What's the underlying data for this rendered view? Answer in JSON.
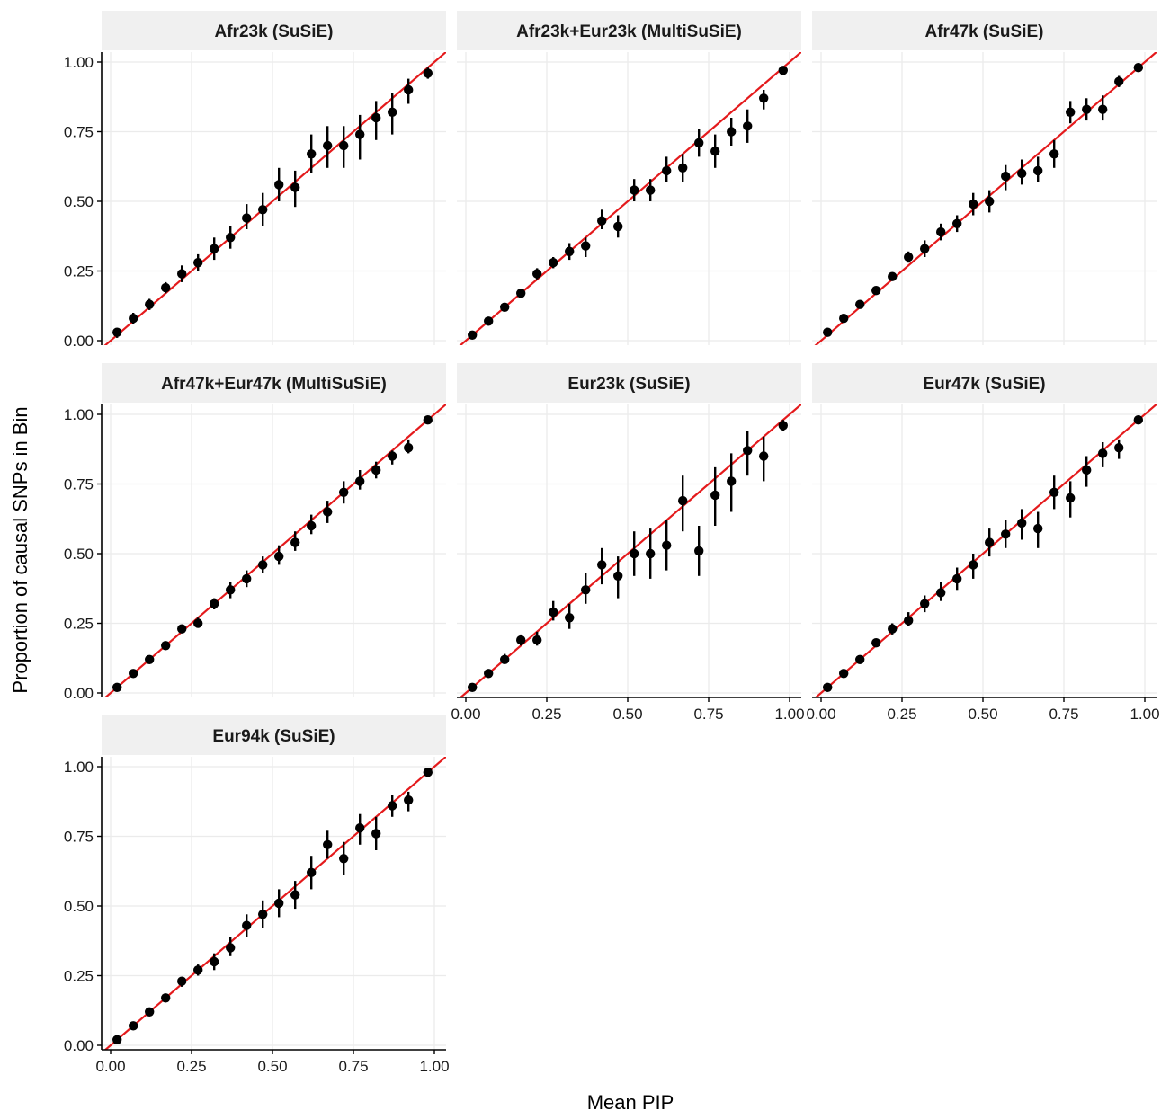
{
  "figure": {
    "xlabel": "Mean PIP",
    "ylabel": "Proportion of causal SNPs in Bin"
  },
  "style": {
    "point_color": "#000000",
    "line_color": "#e41a1c",
    "grid_color": "#ebebeb",
    "strip_color": "#f0f0f0"
  },
  "chart_data": [
    {
      "type": "scatter",
      "title": "Afr23k (SuSiE)",
      "xlim": [
        0,
        1
      ],
      "ylim": [
        0,
        1
      ],
      "x_ticks": [
        "0.00",
        "0.25",
        "0.50",
        "0.75",
        "1.00"
      ],
      "y_ticks": [
        "0.00",
        "0.25",
        "0.50",
        "0.75",
        "1.00"
      ],
      "show_x_axis": false,
      "show_y_axis": true,
      "reference_line": "y = x",
      "x": [
        0.02,
        0.07,
        0.12,
        0.17,
        0.22,
        0.27,
        0.32,
        0.37,
        0.42,
        0.47,
        0.52,
        0.57,
        0.62,
        0.67,
        0.72,
        0.77,
        0.82,
        0.87,
        0.92,
        0.98
      ],
      "y": [
        0.03,
        0.08,
        0.13,
        0.19,
        0.24,
        0.28,
        0.33,
        0.37,
        0.44,
        0.47,
        0.56,
        0.55,
        0.67,
        0.7,
        0.7,
        0.74,
        0.8,
        0.82,
        0.9,
        0.96
      ],
      "lower": [
        0.01,
        0.06,
        0.11,
        0.17,
        0.21,
        0.25,
        0.29,
        0.33,
        0.4,
        0.41,
        0.5,
        0.48,
        0.6,
        0.62,
        0.62,
        0.65,
        0.72,
        0.74,
        0.85,
        0.94
      ],
      "upper": [
        0.04,
        0.1,
        0.15,
        0.21,
        0.27,
        0.31,
        0.37,
        0.41,
        0.49,
        0.53,
        0.62,
        0.61,
        0.74,
        0.77,
        0.77,
        0.81,
        0.86,
        0.89,
        0.94,
        0.98
      ]
    },
    {
      "type": "scatter",
      "title": "Afr23k+Eur23k (MultiSuSiE)",
      "xlim": [
        0,
        1
      ],
      "ylim": [
        0,
        1
      ],
      "x_ticks": [
        "0.00",
        "0.25",
        "0.50",
        "0.75",
        "1.00"
      ],
      "y_ticks": [
        "0.00",
        "0.25",
        "0.50",
        "0.75",
        "1.00"
      ],
      "show_x_axis": false,
      "show_y_axis": false,
      "reference_line": "y = x",
      "x": [
        0.02,
        0.07,
        0.12,
        0.17,
        0.22,
        0.27,
        0.32,
        0.37,
        0.42,
        0.47,
        0.52,
        0.57,
        0.62,
        0.67,
        0.72,
        0.77,
        0.82,
        0.87,
        0.92,
        0.98
      ],
      "y": [
        0.02,
        0.07,
        0.12,
        0.17,
        0.24,
        0.28,
        0.32,
        0.34,
        0.43,
        0.41,
        0.54,
        0.54,
        0.61,
        0.62,
        0.71,
        0.68,
        0.75,
        0.77,
        0.87,
        0.97
      ],
      "lower": [
        0.01,
        0.06,
        0.11,
        0.16,
        0.22,
        0.26,
        0.29,
        0.3,
        0.4,
        0.37,
        0.5,
        0.5,
        0.57,
        0.57,
        0.66,
        0.62,
        0.7,
        0.71,
        0.83,
        0.96
      ],
      "upper": [
        0.03,
        0.08,
        0.13,
        0.18,
        0.26,
        0.3,
        0.35,
        0.37,
        0.47,
        0.45,
        0.58,
        0.58,
        0.66,
        0.67,
        0.76,
        0.74,
        0.8,
        0.83,
        0.9,
        0.98
      ]
    },
    {
      "type": "scatter",
      "title": "Afr47k (SuSiE)",
      "xlim": [
        0,
        1
      ],
      "ylim": [
        0,
        1
      ],
      "x_ticks": [
        "0.00",
        "0.25",
        "0.50",
        "0.75",
        "1.00"
      ],
      "y_ticks": [
        "0.00",
        "0.25",
        "0.50",
        "0.75",
        "1.00"
      ],
      "show_x_axis": false,
      "show_y_axis": false,
      "reference_line": "y = x",
      "x": [
        0.02,
        0.07,
        0.12,
        0.17,
        0.22,
        0.27,
        0.32,
        0.37,
        0.42,
        0.47,
        0.52,
        0.57,
        0.62,
        0.67,
        0.72,
        0.77,
        0.82,
        0.87,
        0.92,
        0.98
      ],
      "y": [
        0.03,
        0.08,
        0.13,
        0.18,
        0.23,
        0.3,
        0.33,
        0.39,
        0.42,
        0.49,
        0.5,
        0.59,
        0.6,
        0.61,
        0.67,
        0.82,
        0.83,
        0.83,
        0.93,
        0.98
      ],
      "lower": [
        0.02,
        0.07,
        0.12,
        0.17,
        0.22,
        0.28,
        0.3,
        0.36,
        0.39,
        0.45,
        0.46,
        0.54,
        0.56,
        0.57,
        0.62,
        0.78,
        0.79,
        0.79,
        0.91,
        0.97
      ],
      "upper": [
        0.04,
        0.09,
        0.14,
        0.19,
        0.24,
        0.32,
        0.36,
        0.42,
        0.45,
        0.53,
        0.54,
        0.63,
        0.65,
        0.66,
        0.72,
        0.86,
        0.87,
        0.88,
        0.95,
        0.99
      ]
    },
    {
      "type": "scatter",
      "title": "Afr47k+Eur47k (MultiSuSiE)",
      "xlim": [
        0,
        1
      ],
      "ylim": [
        0,
        1
      ],
      "x_ticks": [
        "0.00",
        "0.25",
        "0.50",
        "0.75",
        "1.00"
      ],
      "y_ticks": [
        "0.00",
        "0.25",
        "0.50",
        "0.75",
        "1.00"
      ],
      "show_x_axis": false,
      "show_y_axis": true,
      "reference_line": "y = x",
      "x": [
        0.02,
        0.07,
        0.12,
        0.17,
        0.22,
        0.27,
        0.32,
        0.37,
        0.42,
        0.47,
        0.52,
        0.57,
        0.62,
        0.67,
        0.72,
        0.77,
        0.82,
        0.87,
        0.92,
        0.98
      ],
      "y": [
        0.02,
        0.07,
        0.12,
        0.17,
        0.23,
        0.25,
        0.32,
        0.37,
        0.41,
        0.46,
        0.49,
        0.54,
        0.6,
        0.65,
        0.72,
        0.76,
        0.8,
        0.85,
        0.88,
        0.98
      ],
      "lower": [
        0.01,
        0.06,
        0.11,
        0.16,
        0.22,
        0.24,
        0.3,
        0.34,
        0.38,
        0.43,
        0.46,
        0.51,
        0.57,
        0.61,
        0.68,
        0.73,
        0.77,
        0.82,
        0.86,
        0.97
      ],
      "upper": [
        0.03,
        0.08,
        0.13,
        0.18,
        0.24,
        0.27,
        0.34,
        0.4,
        0.44,
        0.49,
        0.53,
        0.58,
        0.64,
        0.69,
        0.76,
        0.8,
        0.83,
        0.87,
        0.91,
        0.99
      ]
    },
    {
      "type": "scatter",
      "title": "Eur23k (SuSiE)",
      "xlim": [
        0,
        1
      ],
      "ylim": [
        0,
        1
      ],
      "x_ticks": [
        "0.00",
        "0.25",
        "0.50",
        "0.75",
        "1.00"
      ],
      "y_ticks": [
        "0.00",
        "0.25",
        "0.50",
        "0.75",
        "1.00"
      ],
      "show_x_axis": true,
      "show_y_axis": false,
      "reference_line": "y = x",
      "x": [
        0.02,
        0.07,
        0.12,
        0.17,
        0.22,
        0.27,
        0.32,
        0.37,
        0.42,
        0.47,
        0.52,
        0.57,
        0.62,
        0.67,
        0.72,
        0.77,
        0.82,
        0.87,
        0.92,
        0.98
      ],
      "y": [
        0.02,
        0.07,
        0.12,
        0.19,
        0.19,
        0.29,
        0.27,
        0.37,
        0.46,
        0.42,
        0.5,
        0.5,
        0.53,
        0.69,
        0.51,
        0.71,
        0.76,
        0.87,
        0.85,
        0.96
      ],
      "lower": [
        0.01,
        0.06,
        0.11,
        0.17,
        0.17,
        0.26,
        0.23,
        0.32,
        0.39,
        0.34,
        0.42,
        0.41,
        0.44,
        0.58,
        0.42,
        0.6,
        0.65,
        0.78,
        0.76,
        0.94
      ],
      "upper": [
        0.03,
        0.08,
        0.14,
        0.21,
        0.22,
        0.33,
        0.32,
        0.43,
        0.52,
        0.49,
        0.58,
        0.59,
        0.62,
        0.78,
        0.6,
        0.81,
        0.86,
        0.94,
        0.92,
        0.98
      ]
    },
    {
      "type": "scatter",
      "title": "Eur47k (SuSiE)",
      "xlim": [
        0,
        1
      ],
      "ylim": [
        0,
        1
      ],
      "x_ticks": [
        "0.00",
        "0.25",
        "0.50",
        "0.75",
        "1.00"
      ],
      "y_ticks": [
        "0.00",
        "0.25",
        "0.50",
        "0.75",
        "1.00"
      ],
      "show_x_axis": true,
      "show_y_axis": false,
      "reference_line": "y = x",
      "x": [
        0.02,
        0.07,
        0.12,
        0.17,
        0.22,
        0.27,
        0.32,
        0.37,
        0.42,
        0.47,
        0.52,
        0.57,
        0.62,
        0.67,
        0.72,
        0.77,
        0.82,
        0.87,
        0.92,
        0.98
      ],
      "y": [
        0.02,
        0.07,
        0.12,
        0.18,
        0.23,
        0.26,
        0.32,
        0.36,
        0.41,
        0.46,
        0.54,
        0.57,
        0.61,
        0.59,
        0.72,
        0.7,
        0.8,
        0.86,
        0.88,
        0.98
      ],
      "lower": [
        0.01,
        0.06,
        0.11,
        0.17,
        0.21,
        0.24,
        0.29,
        0.33,
        0.37,
        0.41,
        0.49,
        0.52,
        0.55,
        0.52,
        0.66,
        0.63,
        0.74,
        0.81,
        0.84,
        0.97
      ],
      "upper": [
        0.03,
        0.08,
        0.13,
        0.19,
        0.25,
        0.29,
        0.35,
        0.4,
        0.45,
        0.5,
        0.59,
        0.62,
        0.66,
        0.65,
        0.78,
        0.76,
        0.85,
        0.9,
        0.91,
        0.99
      ]
    },
    {
      "type": "scatter",
      "title": "Eur94k (SuSiE)",
      "xlim": [
        0,
        1
      ],
      "ylim": [
        0,
        1
      ],
      "x_ticks": [
        "0.00",
        "0.25",
        "0.50",
        "0.75",
        "1.00"
      ],
      "y_ticks": [
        "0.00",
        "0.25",
        "0.50",
        "0.75",
        "1.00"
      ],
      "show_x_axis": true,
      "show_y_axis": true,
      "reference_line": "y = x",
      "x": [
        0.02,
        0.07,
        0.12,
        0.17,
        0.22,
        0.27,
        0.32,
        0.37,
        0.42,
        0.47,
        0.52,
        0.57,
        0.62,
        0.67,
        0.72,
        0.77,
        0.82,
        0.87,
        0.92,
        0.98
      ],
      "y": [
        0.02,
        0.07,
        0.12,
        0.17,
        0.23,
        0.27,
        0.3,
        0.35,
        0.43,
        0.47,
        0.51,
        0.54,
        0.62,
        0.72,
        0.67,
        0.78,
        0.76,
        0.86,
        0.88,
        0.98
      ],
      "lower": [
        0.01,
        0.06,
        0.11,
        0.16,
        0.21,
        0.25,
        0.27,
        0.32,
        0.39,
        0.42,
        0.46,
        0.49,
        0.56,
        0.67,
        0.61,
        0.72,
        0.7,
        0.82,
        0.84,
        0.97
      ],
      "upper": [
        0.03,
        0.08,
        0.13,
        0.18,
        0.24,
        0.29,
        0.33,
        0.39,
        0.47,
        0.52,
        0.56,
        0.59,
        0.68,
        0.77,
        0.73,
        0.83,
        0.82,
        0.9,
        0.91,
        0.99
      ]
    }
  ]
}
